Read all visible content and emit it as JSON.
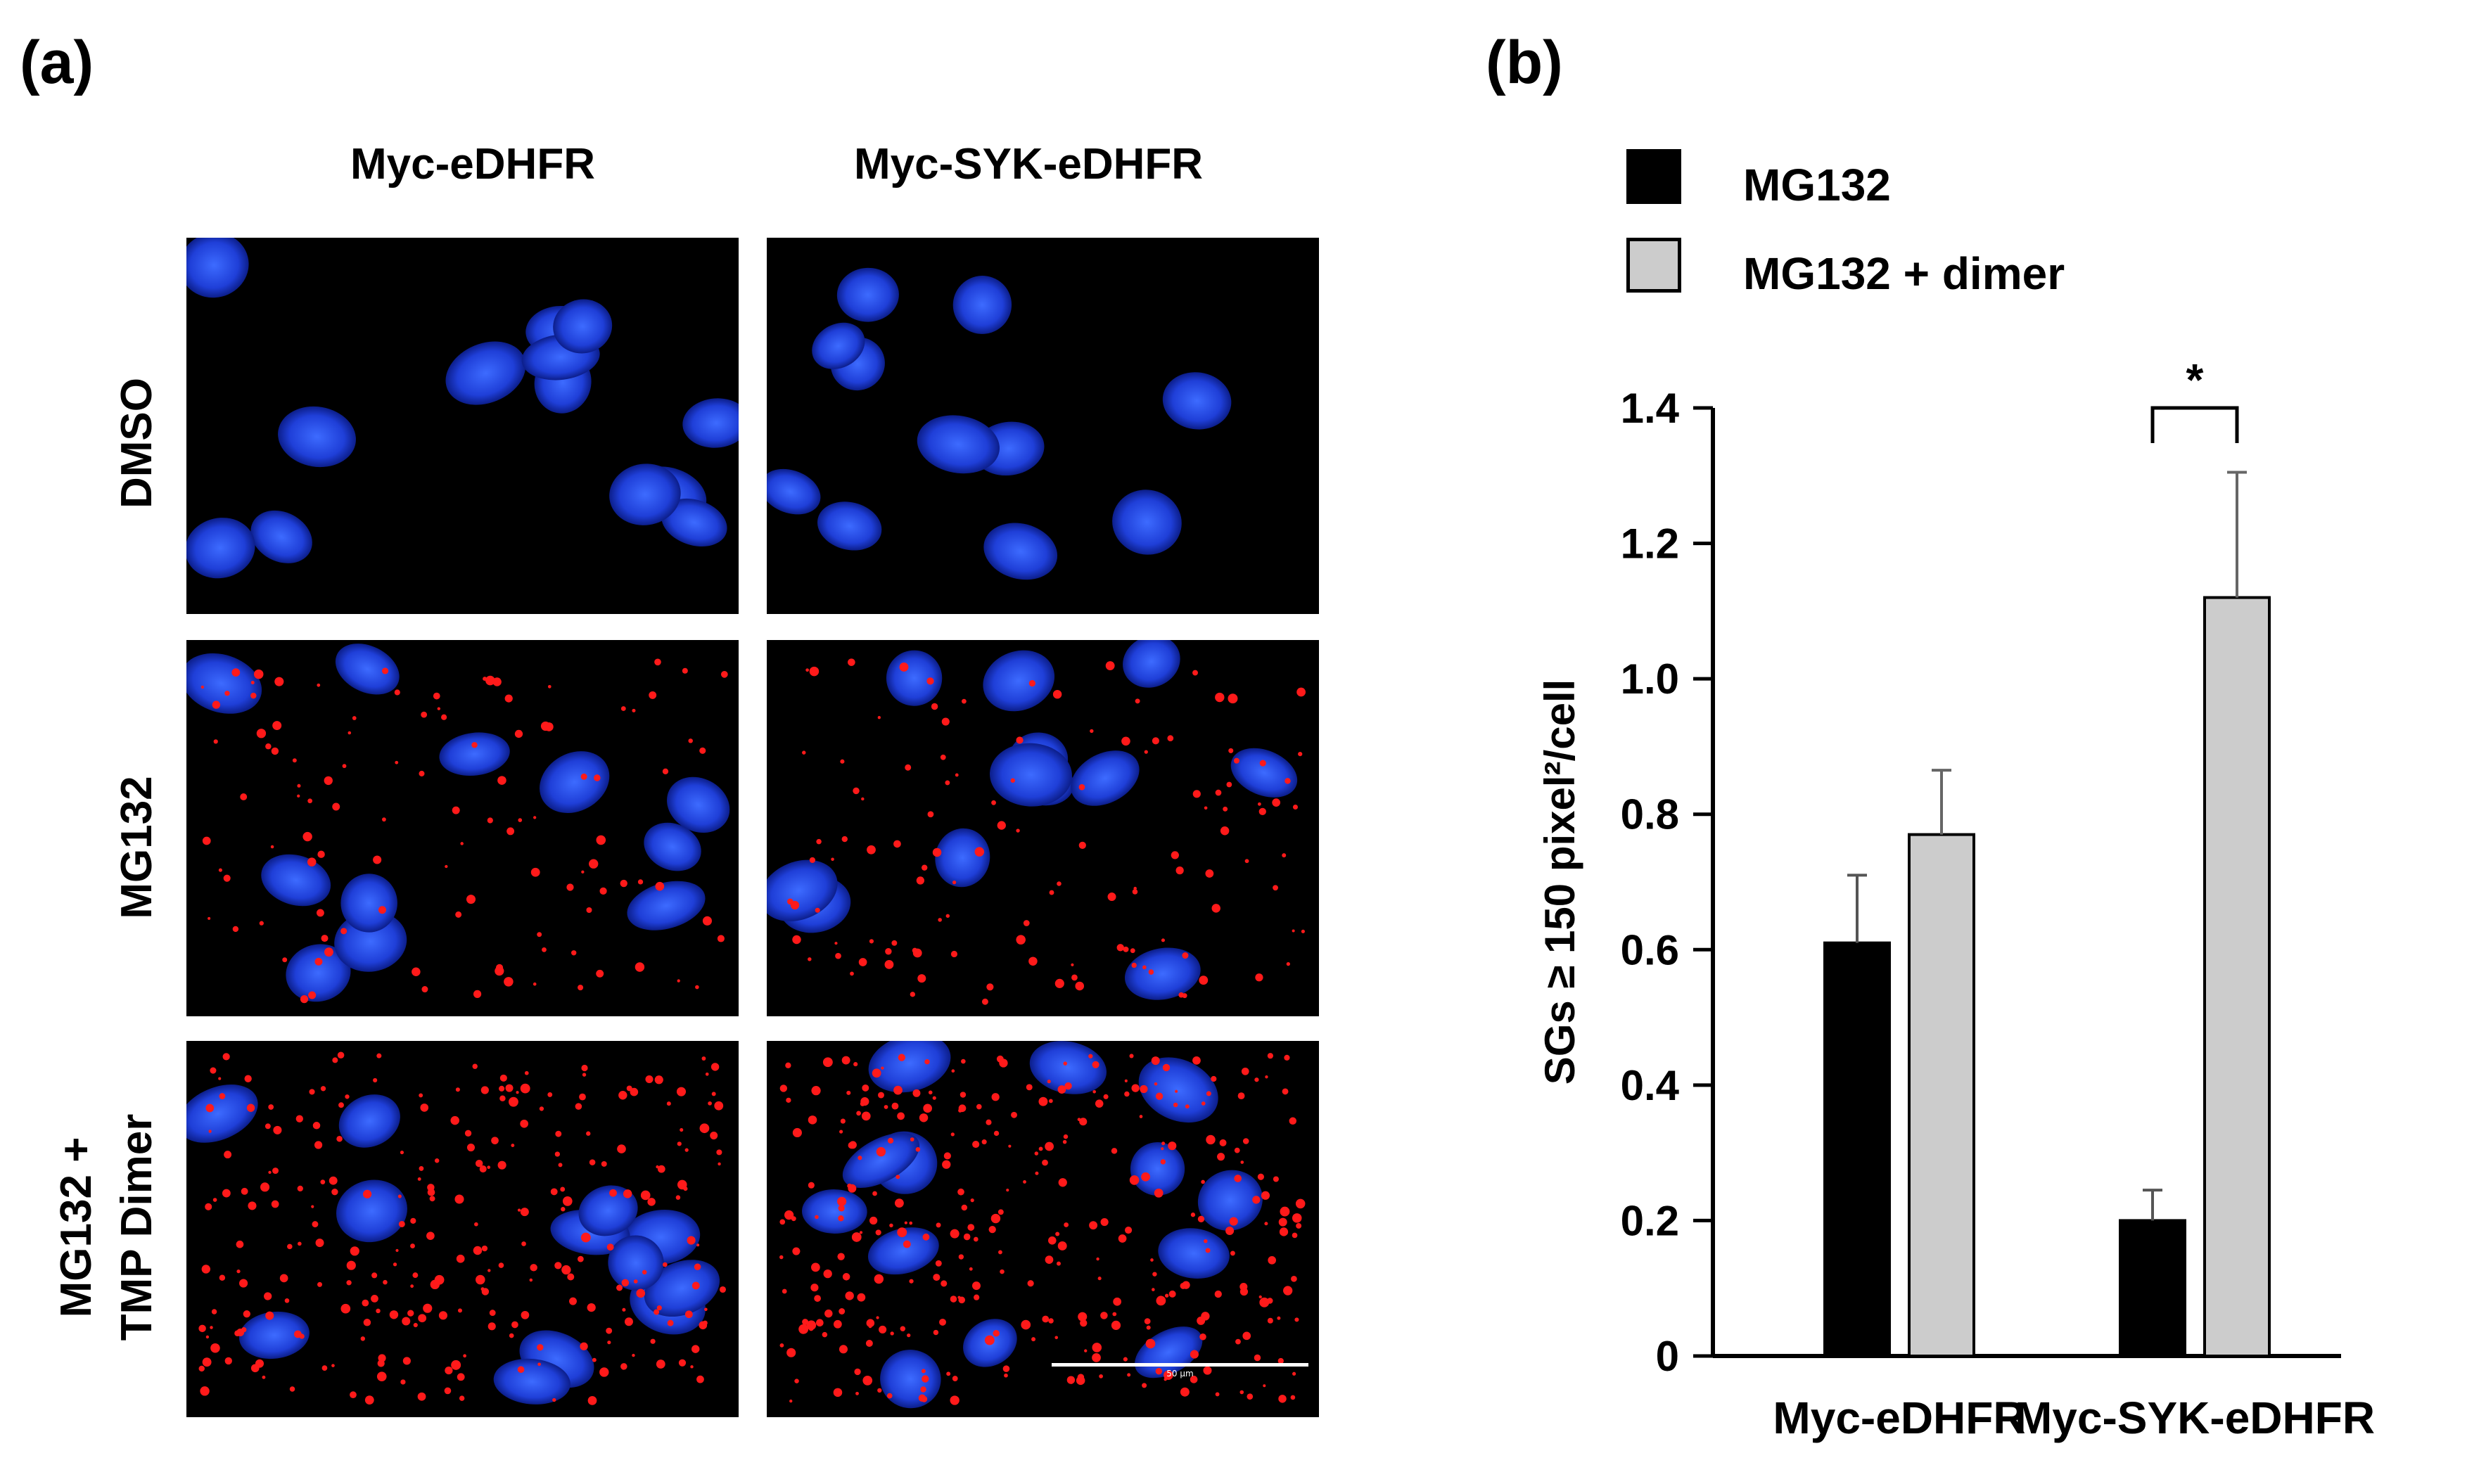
{
  "panel_a": {
    "label": "(a)",
    "columns": [
      "Myc-eDHFR",
      "Myc-SYK-eDHFR"
    ],
    "rows": [
      "DMSO",
      "MG132",
      "MG132 +\nTMP Dimer"
    ],
    "scale_bar_text": "50 μm",
    "colors": {
      "nuclei": "#1f3fd8",
      "granules": "#ff1a1a",
      "background": "#000000"
    }
  },
  "panel_b": {
    "label": "(b)"
  },
  "chart_data": {
    "type": "bar",
    "categories": [
      "Myc-eDHFR",
      "Myc-SYK-eDHFR"
    ],
    "series": [
      {
        "name": "MG132",
        "values": [
          0.61,
          0.2
        ],
        "errors": [
          0.1,
          0.045
        ],
        "color": "#000000"
      },
      {
        "name": "MG132 + dimer",
        "values": [
          0.77,
          1.12
        ],
        "errors": [
          0.095,
          0.185
        ],
        "color": "#cccccc"
      }
    ],
    "ylabel": "SGs ≥ 150 pixel²/cell",
    "ylim": [
      0,
      1.4
    ],
    "yticks": [
      0,
      0.2,
      0.4,
      0.6,
      0.8,
      1.0,
      1.2,
      1.4
    ],
    "ytick_labels": [
      "0",
      "0.2",
      "0.4",
      "0.6",
      "0.8",
      "1.0",
      "1.2",
      "1.4"
    ],
    "annotations": [
      {
        "text": "*",
        "category": "Myc-SYK-eDHFR"
      }
    ],
    "legend_position": "top-left",
    "grid": false
  }
}
